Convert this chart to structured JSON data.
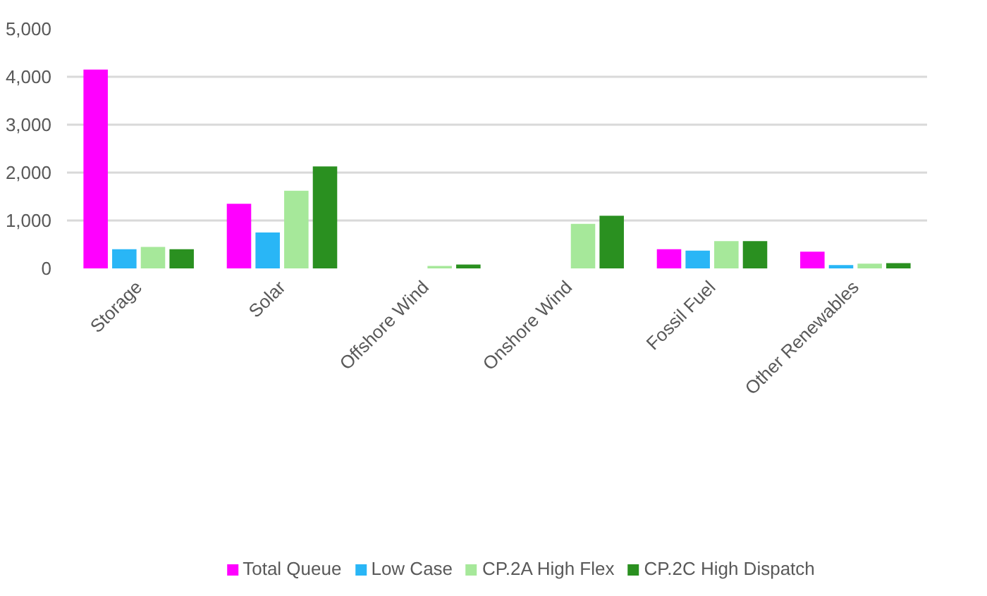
{
  "chart_data": {
    "type": "bar",
    "categories": [
      "Storage",
      "Solar",
      "Offshore Wind",
      "Onshore Wind",
      "Fossil Fuel",
      "Other Renewables"
    ],
    "series": [
      {
        "name": "Total Queue",
        "color": "#ff00ff",
        "values": [
          4150,
          1350,
          0,
          0,
          400,
          350
        ]
      },
      {
        "name": "Low Case",
        "color": "#29b6f6",
        "values": [
          400,
          750,
          0,
          0,
          370,
          70
        ]
      },
      {
        "name": "CP.2A High Flex",
        "color": "#a6e89a",
        "values": [
          450,
          1620,
          50,
          930,
          570,
          100
        ]
      },
      {
        "name": "CP.2C High Dispatch",
        "color": "#2a9020",
        "values": [
          400,
          2130,
          80,
          1100,
          570,
          110
        ]
      }
    ],
    "ylim": [
      0,
      5000
    ],
    "yticks": [
      0,
      {
        "value": 1000,
        "label": "1,000"
      },
      {
        "value": 2000,
        "label": "2,000"
      },
      {
        "value": 3000,
        "label": "3,000"
      },
      {
        "value": 4000,
        "label": "4,000"
      },
      {
        "value": 5000,
        "label": "5,000"
      }
    ],
    "grid": "y",
    "legend": "bottom"
  }
}
